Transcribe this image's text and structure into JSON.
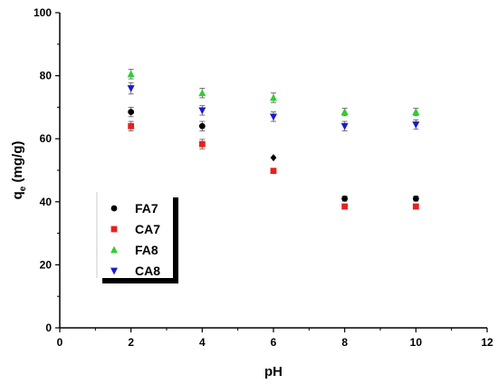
{
  "chart_data": {
    "type": "scatter",
    "xlabel": "pH",
    "ylabel_main": "q",
    "ylabel_sub": "e",
    "ylabel_unit": " (mg/g)",
    "xlim": [
      0,
      12
    ],
    "ylim": [
      0,
      100
    ],
    "xticks": [
      0,
      2,
      4,
      6,
      8,
      10,
      12
    ],
    "yticks": [
      0,
      20,
      40,
      60,
      80,
      100
    ],
    "grid": false,
    "legend_position": "lower-left",
    "series": [
      {
        "name": "FA7",
        "marker": "circle",
        "color": "#000000",
        "x": [
          2,
          4,
          6,
          8,
          10
        ],
        "y": [
          68.5,
          64,
          54,
          41,
          41
        ],
        "err": [
          1.5,
          1.5,
          0,
          0.8,
          0.8
        ]
      },
      {
        "name": "CA7",
        "marker": "square",
        "color": "#e8201e",
        "x": [
          2,
          4,
          6,
          8,
          10
        ],
        "y": [
          64,
          58.3,
          49.8,
          38.5,
          38.5
        ],
        "err": [
          1.5,
          1.5,
          0.8,
          0,
          0
        ]
      },
      {
        "name": "FA8",
        "marker": "triangle-up",
        "color": "#33cc33",
        "x": [
          2,
          4,
          6,
          8,
          10
        ],
        "y": [
          80.5,
          74.5,
          73,
          68.5,
          68.5
        ],
        "err": [
          1.5,
          1.5,
          1.5,
          1.2,
          1.2
        ]
      },
      {
        "name": "CA8",
        "marker": "triangle-down",
        "color": "#1a1acc",
        "x": [
          2,
          4,
          6,
          8,
          10
        ],
        "y": [
          76,
          69,
          67,
          64,
          64.5
        ],
        "err": [
          1.8,
          1.5,
          1.5,
          1.5,
          1.5
        ]
      }
    ]
  }
}
